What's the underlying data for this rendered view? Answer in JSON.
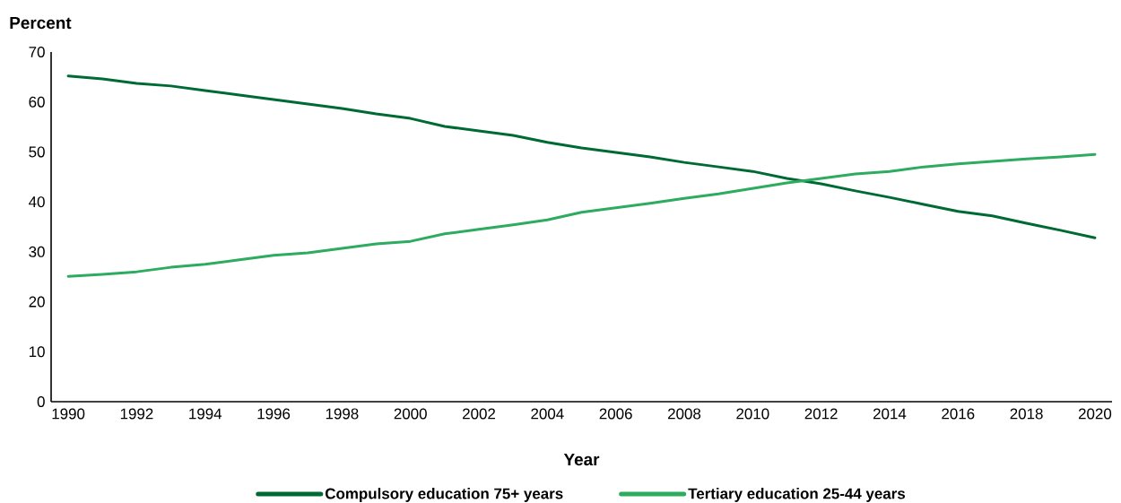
{
  "chart_data": {
    "type": "line",
    "xlabel": "Year",
    "ylabel": "Percent",
    "x": [
      1990,
      1991,
      1992,
      1993,
      1994,
      1995,
      1996,
      1997,
      1998,
      1999,
      2000,
      2001,
      2002,
      2003,
      2004,
      2005,
      2006,
      2007,
      2008,
      2009,
      2010,
      2011,
      2012,
      2013,
      2014,
      2015,
      2016,
      2017,
      2018,
      2019,
      2020
    ],
    "series": [
      {
        "name": "Compulsory education 75+ years",
        "color": "#006a35",
        "values": [
          65.2,
          64.6,
          63.7,
          63.2,
          62.3,
          61.4,
          60.5,
          59.6,
          58.7,
          57.6,
          56.7,
          55.1,
          54.2,
          53.3,
          51.9,
          50.8,
          49.9,
          49.0,
          47.9,
          47.0,
          46.1,
          44.7,
          43.6,
          42.2,
          40.9,
          39.5,
          38.1,
          37.2,
          35.7,
          34.3,
          32.8
        ]
      },
      {
        "name": "Tertiary education 25-44 years",
        "color": "#2dab5f",
        "values": [
          25.1,
          25.5,
          26.0,
          26.9,
          27.5,
          28.4,
          29.3,
          29.8,
          30.7,
          31.6,
          32.1,
          33.6,
          34.5,
          35.4,
          36.4,
          37.9,
          38.8,
          39.7,
          40.7,
          41.6,
          42.7,
          43.8,
          44.7,
          45.6,
          46.1,
          47.0,
          47.6,
          48.1,
          48.6,
          49.0,
          49.5
        ]
      }
    ],
    "xlim": [
      1989.5,
      2020.5
    ],
    "ylim": [
      0,
      70
    ],
    "xticks": [
      1990,
      1992,
      1994,
      1996,
      1998,
      2000,
      2002,
      2004,
      2006,
      2008,
      2010,
      2012,
      2014,
      2016,
      2018,
      2020
    ],
    "yticks": [
      0,
      10,
      20,
      30,
      40,
      50,
      60,
      70
    ],
    "legend": "bottom",
    "marker": "none",
    "line_style": "solid"
  }
}
